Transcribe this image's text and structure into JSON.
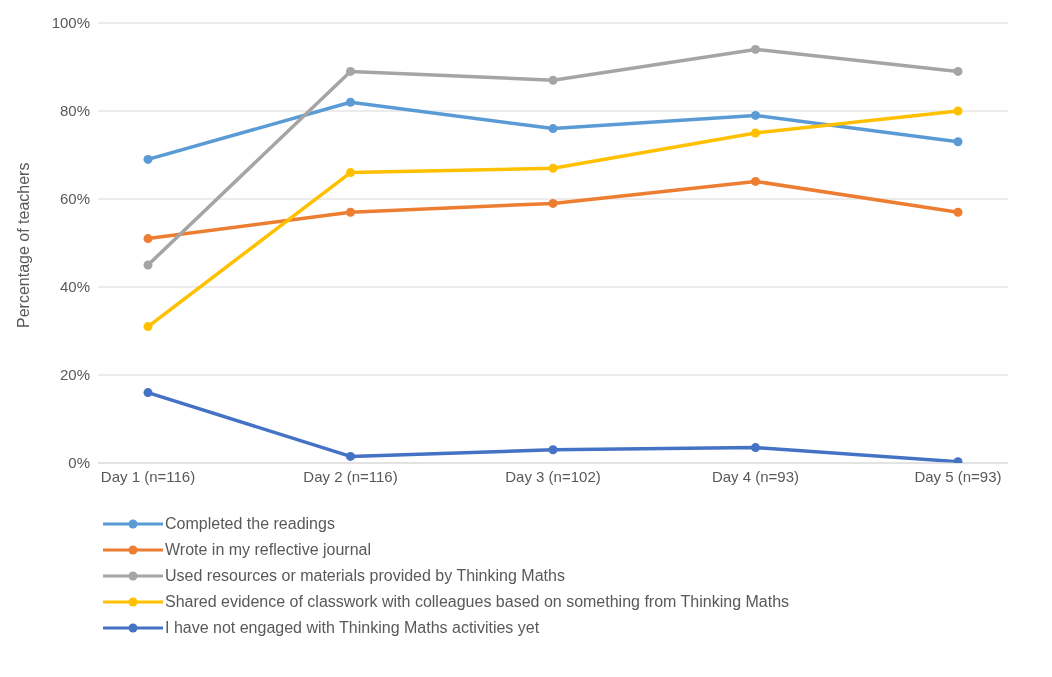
{
  "chart_data": {
    "type": "line",
    "ylabel": "Percentage of teachers",
    "categories": [
      "Day 1 (n=116)",
      "Day 2 (n=116)",
      "Day 3 (n=102)",
      "Day 4 (n=93)",
      "Day 5 (n=93)"
    ],
    "series": [
      {
        "name": "Completed the readings",
        "color": "#5b9bd5",
        "values": [
          69,
          82,
          76,
          79,
          73
        ]
      },
      {
        "name": "Wrote in my reflective journal",
        "color": "#ed7d31",
        "values": [
          51,
          57,
          59,
          64,
          57
        ]
      },
      {
        "name": "Used resources or materials provided by Thinking Maths",
        "color": "#a5a5a5",
        "values": [
          45,
          89,
          87,
          94,
          89
        ]
      },
      {
        "name": "Shared evidence of classwork with colleagues based on something from Thinking Maths",
        "color": "#ffc000",
        "values": [
          31,
          66,
          67,
          75,
          80
        ]
      },
      {
        "name": "I have not engaged with Thinking Maths activities yet",
        "color": "#4472c4",
        "values": [
          16,
          1.5,
          3,
          3.5,
          0.3
        ]
      }
    ],
    "ylim": [
      0,
      100
    ],
    "yticks": [
      {
        "value": 0,
        "label": "0%"
      },
      {
        "value": 20,
        "label": "20%"
      },
      {
        "value": 40,
        "label": "40%"
      },
      {
        "value": 60,
        "label": "60%"
      },
      {
        "value": 80,
        "label": "80%"
      },
      {
        "value": 100,
        "label": "100%"
      }
    ],
    "grid": "y",
    "legend": "bottom",
    "marker": "circle",
    "line_style": "solid"
  }
}
